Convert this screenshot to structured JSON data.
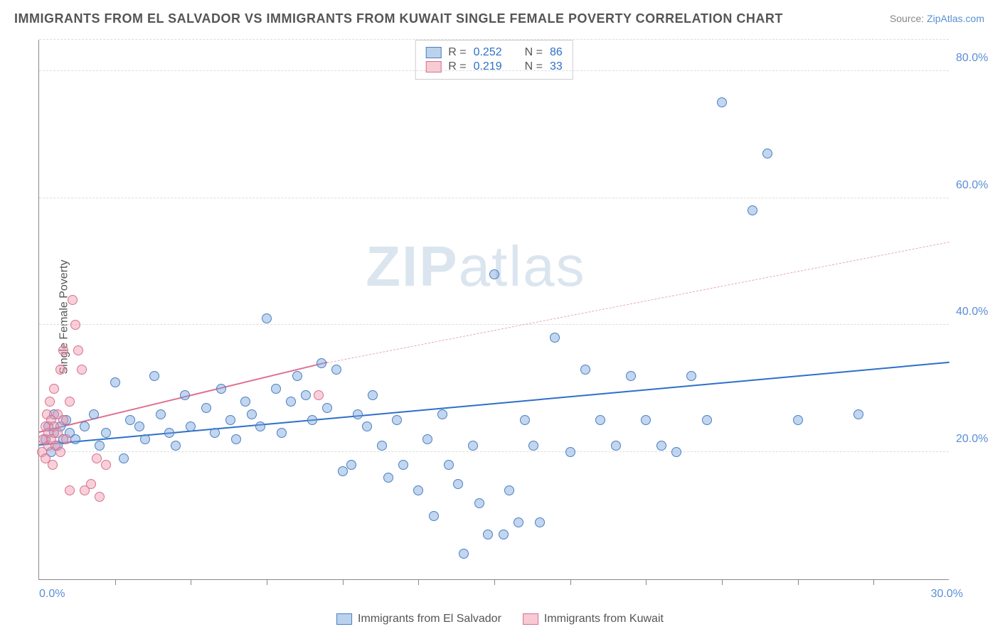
{
  "title": "IMMIGRANTS FROM EL SALVADOR VS IMMIGRANTS FROM KUWAIT SINGLE FEMALE POVERTY CORRELATION CHART",
  "source_label": "Source: ",
  "source_link": "ZipAtlas.com",
  "ylabel": "Single Female Poverty",
  "watermark_zip": "ZIP",
  "watermark_atlas": "atlas",
  "chart": {
    "type": "scatter",
    "xlim": [
      0,
      30
    ],
    "ylim": [
      0,
      85
    ],
    "x_ticks_minor": [
      2.5,
      5,
      7.5,
      10,
      12.5,
      15,
      17.5,
      20,
      22.5,
      25,
      27.5
    ],
    "x_tick_labels": [
      {
        "x": 0,
        "label": "0.0%",
        "align": "left"
      },
      {
        "x": 30,
        "label": "30.0%",
        "align": "right"
      }
    ],
    "y_gridlines": [
      20,
      40,
      60,
      80
    ],
    "y_tick_labels": [
      "20.0%",
      "40.0%",
      "60.0%",
      "80.0%"
    ],
    "grid_color": "#dddddd",
    "axis_color": "#888888",
    "marker_radius": 7,
    "series": [
      {
        "name": "Immigrants from El Salvador",
        "key": "blue",
        "fill": "rgba(120,165,220,0.45)",
        "stroke": "#4a7fc4",
        "r_label": "R = ",
        "r_value": "0.252",
        "n_label": "N = ",
        "n_value": "86",
        "trend": {
          "x1": 0,
          "y1": 21,
          "x2": 30,
          "y2": 34,
          "color": "#2e6fc9",
          "width": 2,
          "dash": false
        },
        "points": [
          [
            0.2,
            22
          ],
          [
            0.3,
            24
          ],
          [
            0.4,
            20
          ],
          [
            0.5,
            26
          ],
          [
            0.5,
            23
          ],
          [
            0.6,
            21
          ],
          [
            0.7,
            24
          ],
          [
            0.8,
            22
          ],
          [
            0.9,
            25
          ],
          [
            1.0,
            23
          ],
          [
            1.2,
            22
          ],
          [
            1.5,
            24
          ],
          [
            1.8,
            26
          ],
          [
            2.0,
            21
          ],
          [
            2.2,
            23
          ],
          [
            2.5,
            31
          ],
          [
            2.8,
            19
          ],
          [
            3.0,
            25
          ],
          [
            3.3,
            24
          ],
          [
            3.5,
            22
          ],
          [
            3.8,
            32
          ],
          [
            4.0,
            26
          ],
          [
            4.3,
            23
          ],
          [
            4.5,
            21
          ],
          [
            4.8,
            29
          ],
          [
            5.0,
            24
          ],
          [
            5.5,
            27
          ],
          [
            5.8,
            23
          ],
          [
            6.0,
            30
          ],
          [
            6.3,
            25
          ],
          [
            6.5,
            22
          ],
          [
            6.8,
            28
          ],
          [
            7.0,
            26
          ],
          [
            7.3,
            24
          ],
          [
            7.5,
            41
          ],
          [
            7.8,
            30
          ],
          [
            8.0,
            23
          ],
          [
            8.3,
            28
          ],
          [
            8.5,
            32
          ],
          [
            8.8,
            29
          ],
          [
            9.0,
            25
          ],
          [
            9.3,
            34
          ],
          [
            9.5,
            27
          ],
          [
            9.8,
            33
          ],
          [
            10.0,
            17
          ],
          [
            10.3,
            18
          ],
          [
            10.5,
            26
          ],
          [
            10.8,
            24
          ],
          [
            11.0,
            29
          ],
          [
            11.3,
            21
          ],
          [
            11.5,
            16
          ],
          [
            11.8,
            25
          ],
          [
            12.0,
            18
          ],
          [
            12.5,
            14
          ],
          [
            12.8,
            22
          ],
          [
            13.0,
            10
          ],
          [
            13.3,
            26
          ],
          [
            13.5,
            18
          ],
          [
            13.8,
            15
          ],
          [
            14.0,
            4
          ],
          [
            14.3,
            21
          ],
          [
            14.5,
            12
          ],
          [
            14.8,
            7
          ],
          [
            15.0,
            48
          ],
          [
            15.3,
            7
          ],
          [
            15.5,
            14
          ],
          [
            15.8,
            9
          ],
          [
            16.0,
            25
          ],
          [
            16.3,
            21
          ],
          [
            16.5,
            9
          ],
          [
            17.0,
            38
          ],
          [
            17.5,
            20
          ],
          [
            18.0,
            33
          ],
          [
            18.5,
            25
          ],
          [
            19.0,
            21
          ],
          [
            19.5,
            32
          ],
          [
            20.0,
            25
          ],
          [
            20.5,
            21
          ],
          [
            21.0,
            20
          ],
          [
            21.5,
            32
          ],
          [
            22.0,
            25
          ],
          [
            22.5,
            75
          ],
          [
            23.5,
            58
          ],
          [
            24.0,
            67
          ],
          [
            25.0,
            25
          ],
          [
            27.0,
            26
          ]
        ]
      },
      {
        "name": "Immigrants from Kuwait",
        "key": "pink",
        "fill": "rgba(240,150,170,0.45)",
        "stroke": "#d87090",
        "r_label": "R = ",
        "r_value": "0.219",
        "n_label": "N = ",
        "n_value": "33",
        "trend_solid": {
          "x1": 0,
          "y1": 23,
          "x2": 9.5,
          "y2": 34,
          "color": "#e06f8f",
          "width": 2
        },
        "trend_dash": {
          "x1": 9.5,
          "y1": 34,
          "x2": 30,
          "y2": 53,
          "color": "#e8a8b8"
        },
        "points": [
          [
            0.1,
            20
          ],
          [
            0.15,
            22
          ],
          [
            0.2,
            24
          ],
          [
            0.2,
            19
          ],
          [
            0.25,
            26
          ],
          [
            0.3,
            23
          ],
          [
            0.3,
            21
          ],
          [
            0.35,
            28
          ],
          [
            0.4,
            25
          ],
          [
            0.4,
            22
          ],
          [
            0.45,
            18
          ],
          [
            0.5,
            24
          ],
          [
            0.5,
            30
          ],
          [
            0.55,
            21
          ],
          [
            0.6,
            26
          ],
          [
            0.6,
            23
          ],
          [
            0.7,
            33
          ],
          [
            0.7,
            20
          ],
          [
            0.8,
            36
          ],
          [
            0.8,
            25
          ],
          [
            0.9,
            22
          ],
          [
            1.0,
            28
          ],
          [
            1.0,
            14
          ],
          [
            1.1,
            44
          ],
          [
            1.2,
            40
          ],
          [
            1.3,
            36
          ],
          [
            1.4,
            33
          ],
          [
            1.5,
            14
          ],
          [
            1.7,
            15
          ],
          [
            1.9,
            19
          ],
          [
            2.0,
            13
          ],
          [
            2.2,
            18
          ],
          [
            9.2,
            29
          ]
        ]
      }
    ]
  },
  "bottom_legend": [
    {
      "swatch": "blue",
      "label": "Immigrants from El Salvador"
    },
    {
      "swatch": "pink",
      "label": "Immigrants from Kuwait"
    }
  ]
}
